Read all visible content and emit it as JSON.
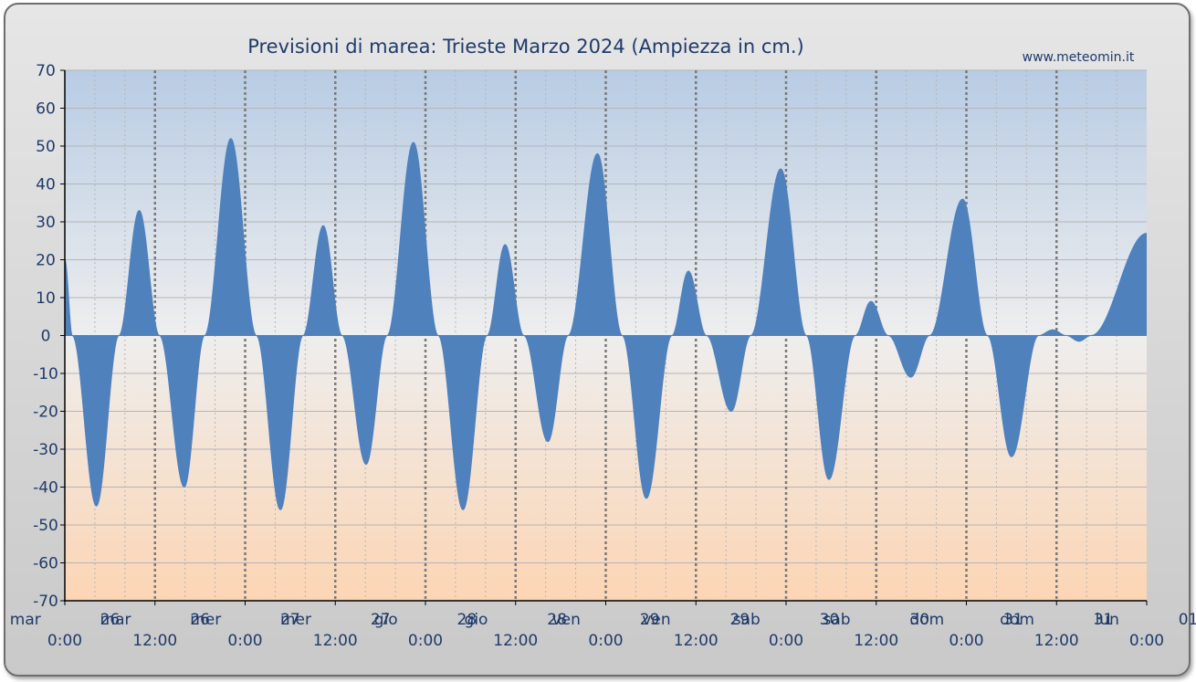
{
  "chart_data": {
    "type": "area",
    "title": "Previsioni di marea: Trieste Marzo 2024 (Ampiezza in cm.)",
    "source": "www.meteomin.it",
    "ylabel": "",
    "xlabel": "",
    "ylim": [
      -70,
      70
    ],
    "yticks": [
      70,
      60,
      50,
      40,
      30,
      20,
      10,
      0,
      -10,
      -20,
      -30,
      -40,
      -50,
      -60,
      -70
    ],
    "xlim_hours": [
      0,
      144
    ],
    "xticks": [
      {
        "hour": 0,
        "line1": "mar  26",
        "line2": "0:00"
      },
      {
        "hour": 12,
        "line1": "mar  26",
        "line2": "12:00"
      },
      {
        "hour": 24,
        "line1": "mer  27",
        "line2": "0:00"
      },
      {
        "hour": 36,
        "line1": "mer  27",
        "line2": "12:00"
      },
      {
        "hour": 48,
        "line1": "gio  28",
        "line2": "0:00"
      },
      {
        "hour": 60,
        "line1": "gio  28",
        "line2": "12:00"
      },
      {
        "hour": 72,
        "line1": "ven  29",
        "line2": "0:00"
      },
      {
        "hour": 84,
        "line1": "ven  29",
        "line2": "12:00"
      },
      {
        "hour": 96,
        "line1": "sab  30",
        "line2": "0:00"
      },
      {
        "hour": 108,
        "line1": "sab  30",
        "line2": "12:00"
      },
      {
        "hour": 120,
        "line1": "dom  31",
        "line2": "0:00"
      },
      {
        "hour": 132,
        "line1": "dom  31",
        "line2": "12:00"
      },
      {
        "hour": 144,
        "line1": "lun  01",
        "line2": "0:00"
      }
    ],
    "fill_color": "#4f81bd",
    "bg_top_color": "#b8cce4",
    "bg_bottom_color": "#fcd5b4",
    "grid": true,
    "points": [
      {
        "x": 0,
        "y": 20
      },
      {
        "x": 1.0,
        "y": 0
      },
      {
        "x": 4.2,
        "y": -45
      },
      {
        "x": 7.2,
        "y": 0
      },
      {
        "x": 9.9,
        "y": 33
      },
      {
        "x": 12.6,
        "y": 0
      },
      {
        "x": 15.9,
        "y": -40
      },
      {
        "x": 18.6,
        "y": 0
      },
      {
        "x": 22.1,
        "y": 52
      },
      {
        "x": 25.5,
        "y": 0
      },
      {
        "x": 28.7,
        "y": -46
      },
      {
        "x": 31.7,
        "y": 0
      },
      {
        "x": 34.4,
        "y": 29
      },
      {
        "x": 36.9,
        "y": 0
      },
      {
        "x": 40.1,
        "y": -34
      },
      {
        "x": 42.9,
        "y": 0
      },
      {
        "x": 46.4,
        "y": 51
      },
      {
        "x": 49.7,
        "y": 0
      },
      {
        "x": 53.0,
        "y": -46
      },
      {
        "x": 56.2,
        "y": 0
      },
      {
        "x": 58.6,
        "y": 24
      },
      {
        "x": 61.1,
        "y": 0
      },
      {
        "x": 64.3,
        "y": -28
      },
      {
        "x": 67.0,
        "y": 0
      },
      {
        "x": 70.9,
        "y": 48
      },
      {
        "x": 74.2,
        "y": 0
      },
      {
        "x": 77.4,
        "y": -43
      },
      {
        "x": 80.8,
        "y": 0
      },
      {
        "x": 83.0,
        "y": 17
      },
      {
        "x": 85.4,
        "y": 0
      },
      {
        "x": 88.7,
        "y": -20
      },
      {
        "x": 91.3,
        "y": 0
      },
      {
        "x": 95.3,
        "y": 44
      },
      {
        "x": 98.7,
        "y": 0
      },
      {
        "x": 101.7,
        "y": -38
      },
      {
        "x": 105.2,
        "y": 0
      },
      {
        "x": 107.3,
        "y": 9
      },
      {
        "x": 109.6,
        "y": 0
      },
      {
        "x": 112.6,
        "y": -11
      },
      {
        "x": 115.1,
        "y": 0
      },
      {
        "x": 119.5,
        "y": 36
      },
      {
        "x": 122.8,
        "y": 0
      },
      {
        "x": 126.0,
        "y": -32
      },
      {
        "x": 129.6,
        "y": 0
      },
      {
        "x": 131.5,
        "y": 1.5
      },
      {
        "x": 133.3,
        "y": 0
      },
      {
        "x": 135.0,
        "y": -1.5
      },
      {
        "x": 136.6,
        "y": 0
      },
      {
        "x": 144,
        "y": 27
      }
    ]
  }
}
